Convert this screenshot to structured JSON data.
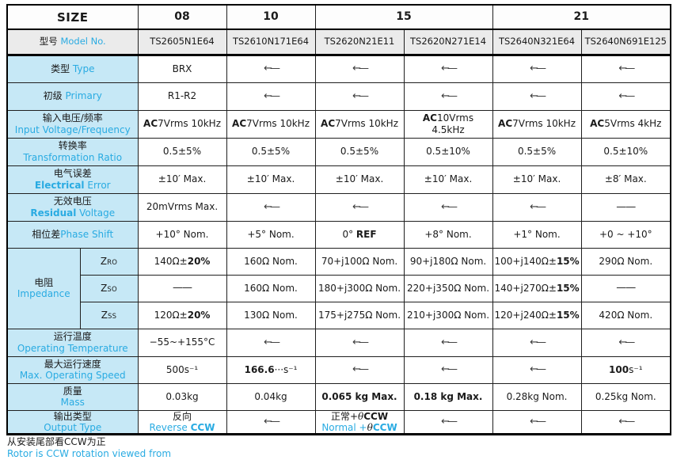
{
  "colors": {
    "accent_cyan": "#29abe2",
    "label_bg": "#c6e8f6",
    "header_bg": "#ebebeb",
    "border": "#000000"
  },
  "glyphs": {
    "arrow": "←—",
    "dash": "——"
  },
  "table": {
    "size_label": "SIZE",
    "size_header": {
      "sizes": [
        {
          "label": "08",
          "span": 1
        },
        {
          "label": "10",
          "span": 1
        },
        {
          "label": "15",
          "span": 2
        },
        {
          "label": "21",
          "span": 2
        }
      ]
    },
    "model_row": {
      "label_zh": "型号 ",
      "label_en": "Model No.",
      "models": [
        "TS2605N1E64",
        "TS2610N171E64",
        "TS2620N21E11",
        "TS2620N271E14",
        "TS2640N321E64",
        "TS2640N691E125"
      ]
    },
    "rows": [
      {
        "label": {
          "lines": [
            [
              {
                "t": "类型 "
              },
              {
                "t": "Type",
                "c": 1
              }
            ]
          ]
        },
        "cells": [
          {
            "segs": [
              {
                "t": "BRX"
              }
            ]
          },
          {
            "kind": "arrow"
          },
          {
            "kind": "arrow"
          },
          {
            "kind": "arrow"
          },
          {
            "kind": "arrow"
          },
          {
            "kind": "arrow"
          }
        ]
      },
      {
        "label": {
          "lines": [
            [
              {
                "t": "初级 "
              },
              {
                "t": "Primary",
                "c": 1
              }
            ]
          ]
        },
        "cells": [
          {
            "segs": [
              {
                "t": "R1-R2"
              }
            ]
          },
          {
            "kind": "arrow"
          },
          {
            "kind": "arrow"
          },
          {
            "kind": "arrow"
          },
          {
            "kind": "arrow"
          },
          {
            "kind": "arrow"
          }
        ]
      },
      {
        "label": {
          "lines": [
            [
              {
                "t": "输入电压/频率"
              }
            ],
            [
              {
                "t": "Input Voltage/Frequency",
                "c": 1
              }
            ]
          ]
        },
        "cells": [
          {
            "segs": [
              {
                "t": "AC",
                "b": 1
              },
              {
                "t": "7Vrms 10kHz"
              }
            ]
          },
          {
            "segs": [
              {
                "t": "AC",
                "b": 1
              },
              {
                "t": "7Vrms 10kHz"
              }
            ]
          },
          {
            "segs": [
              {
                "t": "AC",
                "b": 1
              },
              {
                "t": "7Vrms 10kHz"
              }
            ]
          },
          {
            "segs": [
              {
                "t": "AC",
                "b": 1
              },
              {
                "t": "10Vrms 4.5kHz"
              }
            ]
          },
          {
            "segs": [
              {
                "t": "AC",
                "b": 1
              },
              {
                "t": "7Vrms 10kHz"
              }
            ]
          },
          {
            "segs": [
              {
                "t": "AC",
                "b": 1
              },
              {
                "t": "5Vrms 4kHz"
              }
            ]
          }
        ]
      },
      {
        "label": {
          "lines": [
            [
              {
                "t": "转换率"
              }
            ],
            [
              {
                "t": "Transformation Ratio",
                "c": 1
              }
            ]
          ]
        },
        "cells": [
          {
            "segs": [
              {
                "t": "0.5±5%"
              }
            ]
          },
          {
            "segs": [
              {
                "t": "0.5±5%"
              }
            ]
          },
          {
            "segs": [
              {
                "t": "0.5±5%"
              }
            ]
          },
          {
            "segs": [
              {
                "t": "0.5±10%"
              }
            ]
          },
          {
            "segs": [
              {
                "t": "0.5±5%"
              }
            ]
          },
          {
            "segs": [
              {
                "t": "0.5±10%"
              }
            ]
          }
        ]
      },
      {
        "label": {
          "lines": [
            [
              {
                "t": "电气误差"
              }
            ],
            [
              {
                "t": "Electrical",
                "c": 1,
                "b": 1
              },
              {
                "t": " Error",
                "c": 1
              }
            ]
          ]
        },
        "cells": [
          {
            "segs": [
              {
                "t": "±10′ Max."
              }
            ]
          },
          {
            "segs": [
              {
                "t": "±10′ Max."
              }
            ]
          },
          {
            "segs": [
              {
                "t": "±10′ Max."
              }
            ]
          },
          {
            "segs": [
              {
                "t": "±10′ Max."
              }
            ]
          },
          {
            "segs": [
              {
                "t": "±10′ Max."
              }
            ]
          },
          {
            "segs": [
              {
                "t": "±8′ Max."
              }
            ]
          }
        ]
      },
      {
        "label": {
          "lines": [
            [
              {
                "t": "无效电压"
              }
            ],
            [
              {
                "t": "Residual",
                "c": 1,
                "b": 1
              },
              {
                "t": " Voltage",
                "c": 1
              }
            ]
          ]
        },
        "cells": [
          {
            "segs": [
              {
                "t": "20mVrms Max."
              }
            ]
          },
          {
            "kind": "arrow"
          },
          {
            "kind": "arrow"
          },
          {
            "kind": "arrow"
          },
          {
            "kind": "arrow"
          },
          {
            "kind": "dash"
          }
        ]
      },
      {
        "rowclass": "phase-row",
        "label": {
          "lines": [
            [
              {
                "t": "相位差"
              },
              {
                "t": "Phase Shift",
                "c": 1
              }
            ]
          ]
        },
        "cells": [
          {
            "segs": [
              {
                "t": "+10° Nom."
              }
            ]
          },
          {
            "segs": [
              {
                "t": "+5° Nom."
              }
            ]
          },
          {
            "segs": [
              {
                "t": "0° "
              },
              {
                "t": "REF",
                "b": 1
              }
            ]
          },
          {
            "segs": [
              {
                "t": "+8° Nom."
              }
            ]
          },
          {
            "segs": [
              {
                "t": "+1° Nom."
              }
            ]
          },
          {
            "segs": [
              {
                "t": "+0 ~ +10°"
              }
            ]
          }
        ]
      },
      {
        "impedance": true,
        "label": {
          "lines": [
            [
              {
                "t": "电阻"
              }
            ],
            [
              {
                "t": "Impedance",
                "c": 1
              }
            ]
          ]
        },
        "subrows": [
          {
            "sub": [
              {
                "t": "Z"
              },
              {
                "t": "RO",
                "sc": 1
              }
            ],
            "cells": [
              {
                "segs": [
                  {
                    "t": "140Ω±"
                  },
                  {
                    "t": "20%",
                    "b": 1
                  }
                ]
              },
              {
                "segs": [
                  {
                    "t": "160Ω Nom."
                  }
                ]
              },
              {
                "segs": [
                  {
                    "t": "70+j100Ω Nom."
                  }
                ]
              },
              {
                "segs": [
                  {
                    "t": "90+j180Ω Nom."
                  }
                ]
              },
              {
                "segs": [
                  {
                    "t": "100+j140Ω±"
                  },
                  {
                    "t": "15%",
                    "b": 1
                  }
                ]
              },
              {
                "segs": [
                  {
                    "t": "290Ω Nom."
                  }
                ]
              }
            ]
          },
          {
            "sub": [
              {
                "t": "Z"
              },
              {
                "t": "SO",
                "sc": 1
              }
            ],
            "cells": [
              {
                "kind": "dash"
              },
              {
                "segs": [
                  {
                    "t": "160Ω Nom."
                  }
                ]
              },
              {
                "segs": [
                  {
                    "t": "180+j300Ω Nom."
                  }
                ]
              },
              {
                "segs": [
                  {
                    "t": "220+j350Ω Nom."
                  }
                ]
              },
              {
                "segs": [
                  {
                    "t": "140+j270Ω±"
                  },
                  {
                    "t": "15%",
                    "b": 1
                  }
                ]
              },
              {
                "kind": "dash"
              }
            ]
          },
          {
            "sub": [
              {
                "t": "Z"
              },
              {
                "t": "SS",
                "sc": 1
              }
            ],
            "cells": [
              {
                "segs": [
                  {
                    "t": "120Ω±"
                  },
                  {
                    "t": "20%",
                    "b": 1
                  }
                ]
              },
              {
                "segs": [
                  {
                    "t": "130Ω Nom."
                  }
                ]
              },
              {
                "segs": [
                  {
                    "t": "175+j275Ω Nom."
                  }
                ]
              },
              {
                "segs": [
                  {
                    "t": "210+j300Ω Nom."
                  }
                ]
              },
              {
                "segs": [
                  {
                    "t": "120+j240Ω±"
                  },
                  {
                    "t": "15%",
                    "b": 1
                  }
                ]
              },
              {
                "segs": [
                  {
                    "t": "420Ω Nom."
                  }
                ]
              }
            ]
          }
        ]
      },
      {
        "label": {
          "lines": [
            [
              {
                "t": "运行温度"
              }
            ],
            [
              {
                "t": "Operating Temperature",
                "c": 1
              }
            ]
          ]
        },
        "cells": [
          {
            "segs": [
              {
                "t": "−55~+155°C"
              }
            ]
          },
          {
            "kind": "arrow"
          },
          {
            "kind": "arrow"
          },
          {
            "kind": "arrow"
          },
          {
            "kind": "arrow"
          },
          {
            "kind": "arrow"
          }
        ]
      },
      {
        "rowclass": "speed-row",
        "label": {
          "lines": [
            [
              {
                "t": "最大运行速度"
              }
            ],
            [
              {
                "t": "Max. Operating Speed",
                "c": 1
              }
            ]
          ]
        },
        "cells": [
          {
            "segs": [
              {
                "t": "500s⁻¹"
              }
            ]
          },
          {
            "segs": [
              {
                "t": "166.6",
                "b": 1
              },
              {
                "t": "···s⁻¹"
              }
            ]
          },
          {
            "kind": "arrow"
          },
          {
            "kind": "arrow"
          },
          {
            "kind": "arrow"
          },
          {
            "segs": [
              {
                "t": "100",
                "b": 1
              },
              {
                "t": "s⁻¹"
              }
            ]
          }
        ]
      },
      {
        "rowclass": "mass-row",
        "label": {
          "lines": [
            [
              {
                "t": "质量"
              }
            ],
            [
              {
                "t": "Mass",
                "c": 1
              }
            ]
          ]
        },
        "cells": [
          {
            "segs": [
              {
                "t": "0.03kg"
              }
            ]
          },
          {
            "segs": [
              {
                "t": "0.04kg"
              }
            ]
          },
          {
            "segs": [
              {
                "t": "0.065 kg Max.",
                "b": 1
              }
            ]
          },
          {
            "segs": [
              {
                "t": "0.18 kg Max.",
                "b": 1
              }
            ]
          },
          {
            "segs": [
              {
                "t": "0.28kg Nom."
              }
            ]
          },
          {
            "segs": [
              {
                "t": "0.25kg Nom."
              }
            ]
          }
        ]
      },
      {
        "rowclass": "output-row",
        "label": {
          "lines": [
            [
              {
                "t": "输出类型"
              }
            ],
            [
              {
                "t": "Output Type",
                "c": 1
              }
            ]
          ]
        },
        "cells": [
          {
            "lines": [
              [
                {
                  "t": "反向"
                }
              ],
              [
                {
                  "t": "Reverse ",
                  "c": 1
                },
                {
                  "t": "CCW",
                  "c": 1,
                  "b": 1
                }
              ]
            ]
          },
          {
            "kind": "arrow"
          },
          {
            "lines": [
              [
                {
                  "t": "正常+"
                },
                {
                  "t": "θ",
                  "it": 1
                },
                {
                  "t": "CCW",
                  "b": 1
                }
              ],
              [
                {
                  "t": "Normal +",
                  "c": 1
                },
                {
                  "t": "θ",
                  "it": 1
                },
                {
                  "t": "CCW",
                  "c": 1,
                  "b": 1
                }
              ]
            ]
          },
          {
            "kind": "arrow"
          },
          {
            "kind": "arrow"
          },
          {
            "kind": "arrow"
          }
        ]
      }
    ]
  },
  "footer": {
    "note_zh": "从安装尾部看CCW为正",
    "note_en": "Rotor is CCW rotation viewed from"
  }
}
